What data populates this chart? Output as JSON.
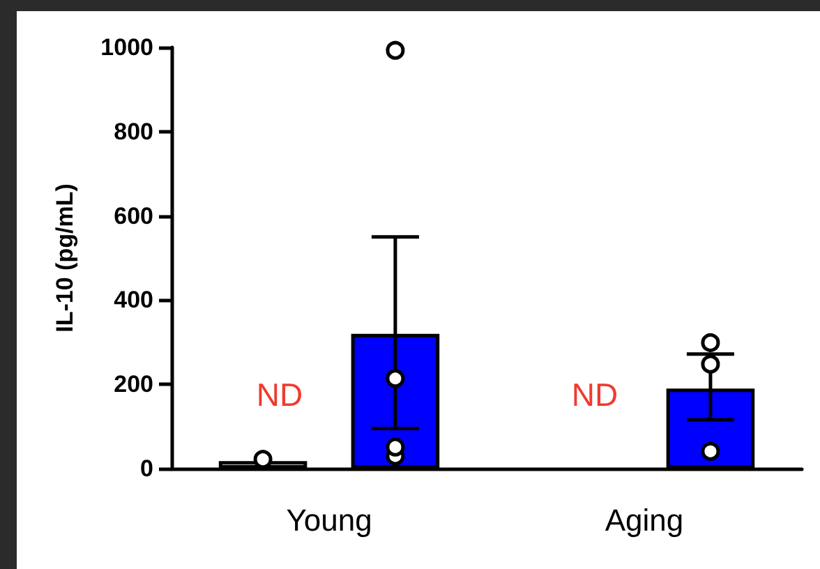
{
  "chart_data": {
    "type": "bar",
    "ylabel": "IL-10 (pg/mL)",
    "categories": [
      "Young",
      "Aging"
    ],
    "series": [
      {
        "color": "#ffffff",
        "values": [
          18,
          null
        ]
      },
      {
        "color": "#0000ff",
        "values": [
          320,
          190
        ],
        "errors": [
          [
            95,
            550
          ],
          [
            116,
            272
          ]
        ]
      },
      {
        "type": "scatter",
        "color": "#ffffff",
        "x": [
          "Young"
        ],
        "values": [
          22
        ]
      },
      {
        "type": "scatter",
        "color": "#ffffff",
        "x": [
          "Young",
          "Young",
          "Young",
          "Young",
          "Aging",
          "Aging",
          "Aging"
        ],
        "values": [
          993,
          214,
          30,
          51,
          299,
          248,
          41
        ]
      }
    ],
    "ylim": [
      0,
      1000
    ],
    "yticks": [
      0,
      200,
      400,
      600,
      800,
      1000
    ],
    "marker": "circle",
    "annotations": [
      "ND",
      "ND"
    ]
  }
}
